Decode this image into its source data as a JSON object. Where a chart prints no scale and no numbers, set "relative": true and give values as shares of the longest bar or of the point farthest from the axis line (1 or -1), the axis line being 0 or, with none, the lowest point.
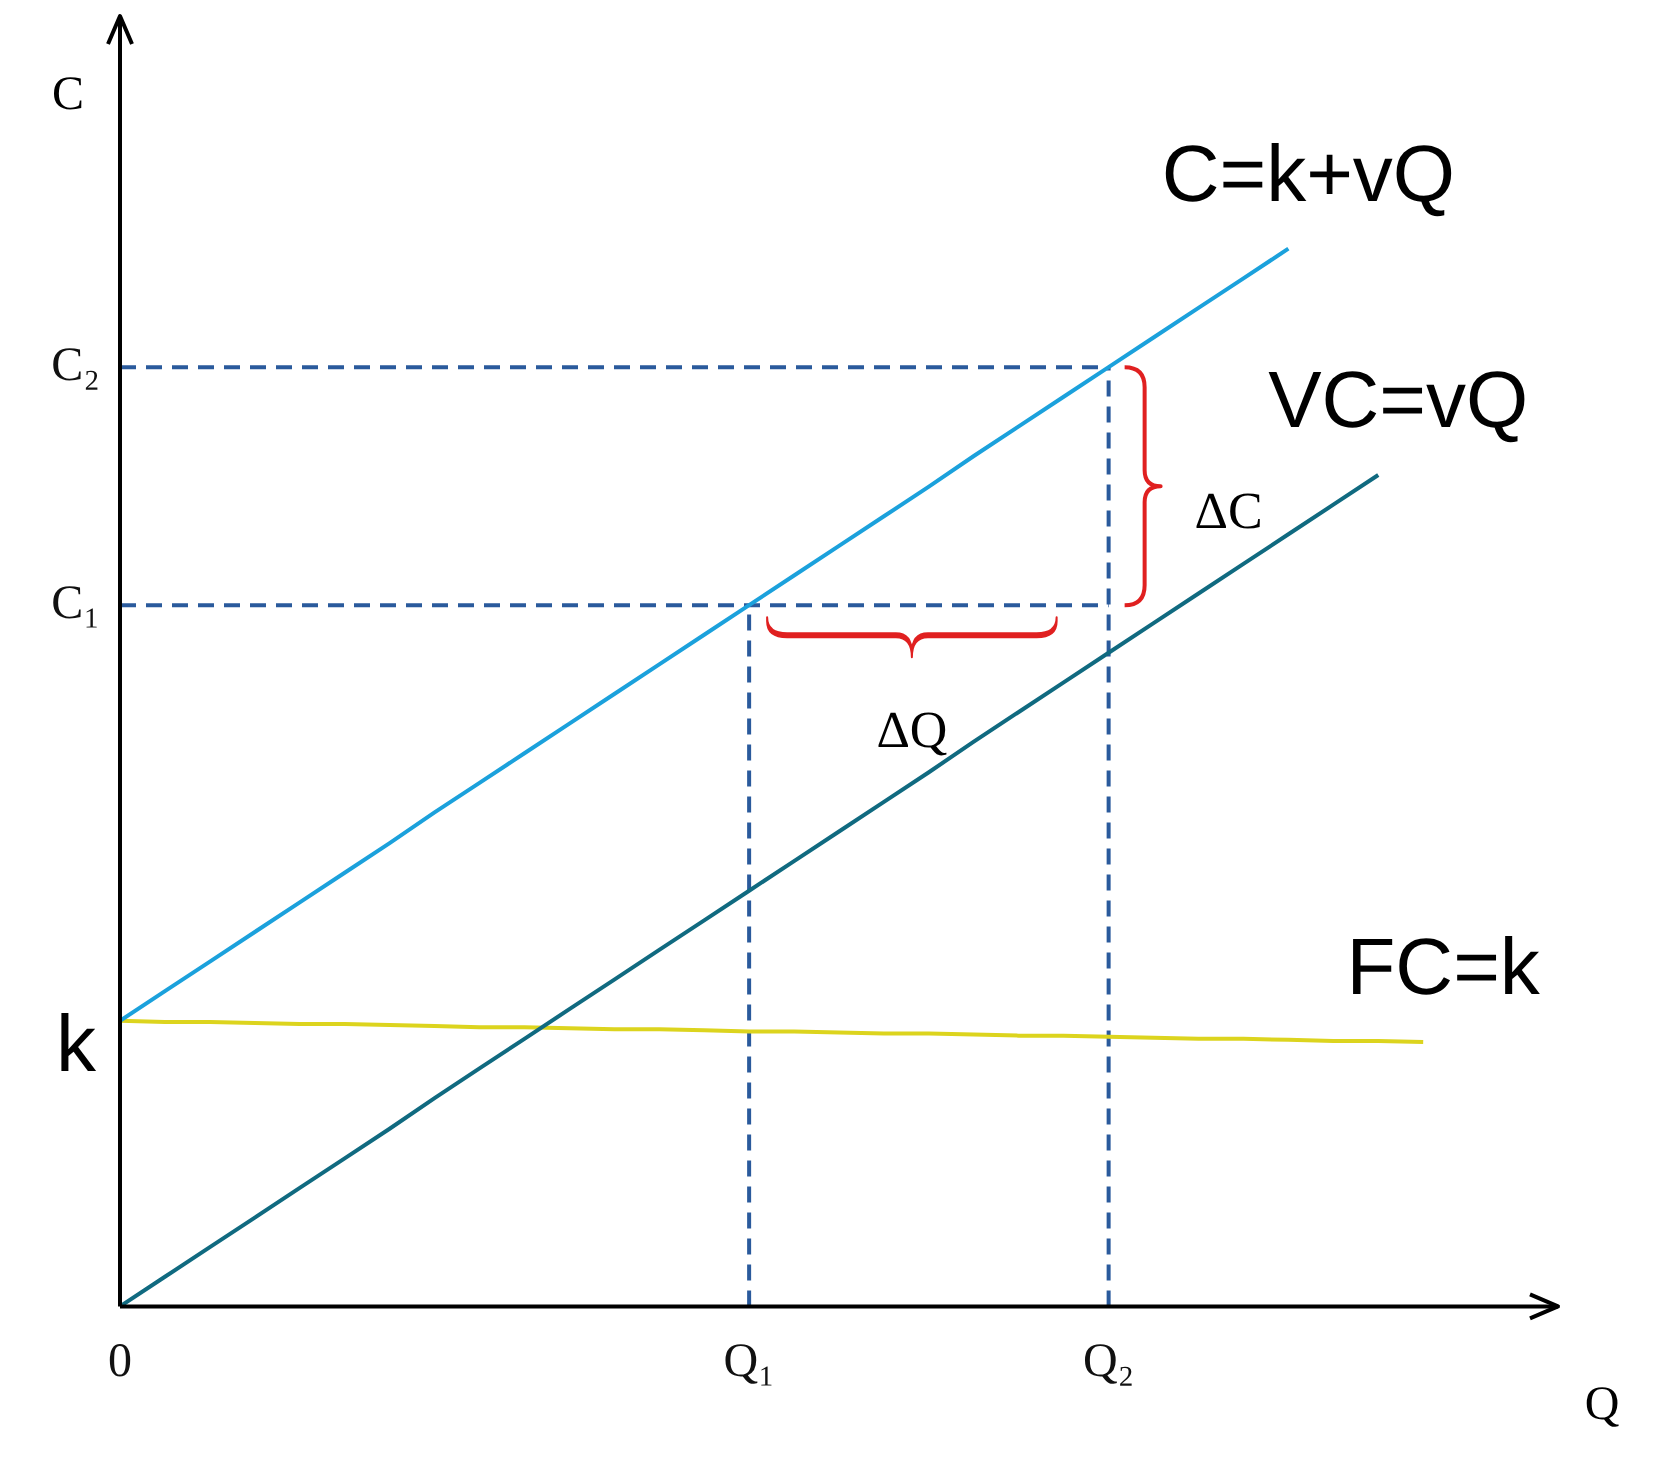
{
  "chart_data": {
    "type": "line",
    "xlabel": "Q",
    "ylabel": "C",
    "relative": true,
    "categories": [
      "0",
      null,
      null,
      null,
      null,
      null,
      null,
      null,
      null,
      null,
      null,
      null,
      null,
      null,
      "Q₁",
      null,
      null,
      null,
      null,
      null,
      null,
      null,
      "Q₂",
      null,
      null,
      null,
      null,
      null,
      null,
      null,
      null,
      null,
      null
    ],
    "grid": false,
    "legend": false,
    "marker": "none",
    "series": [
      {
        "name": "C=k+vQ",
        "color": "#1ba1dc",
        "values": [
          0.27,
          0.298,
          0.326,
          0.354,
          0.382,
          0.41,
          0.438,
          0.467,
          0.495,
          0.523,
          0.551,
          0.579,
          0.607,
          0.635,
          0.663,
          0.691,
          0.719,
          0.747,
          0.775,
          0.804,
          0.832,
          0.86,
          0.888,
          0.916,
          0.944,
          0.972,
          1.0,
          null,
          null,
          null,
          null,
          null,
          null
        ]
      },
      {
        "name": "VC=vQ",
        "color": "#106a80",
        "values": [
          0,
          0.028,
          0.056,
          0.084,
          0.112,
          0.14,
          0.168,
          0.197,
          0.225,
          0.253,
          0.281,
          0.309,
          0.337,
          0.365,
          0.393,
          0.421,
          0.449,
          0.477,
          0.505,
          0.534,
          0.562,
          0.59,
          0.618,
          0.646,
          0.674,
          0.702,
          0.73,
          0.758,
          0.786,
          null,
          null,
          null,
          null
        ]
      },
      {
        "name": "FC=k",
        "color": "#dcd41e",
        "values": [
          0.27,
          0.269,
          0.269,
          0.268,
          0.267,
          0.267,
          0.266,
          0.265,
          0.264,
          0.264,
          0.263,
          0.262,
          0.262,
          0.261,
          0.26,
          0.26,
          0.259,
          0.258,
          0.258,
          0.257,
          0.256,
          0.256,
          0.255,
          0.254,
          0.253,
          0.253,
          0.252,
          0.251,
          0.251,
          0.25,
          null,
          null,
          null
        ]
      }
    ],
    "ref_lines": [
      {
        "axis": "y",
        "value": 0.663,
        "label": "C₁",
        "color": "#2a5a9c",
        "line_style": "dashed"
      },
      {
        "axis": "y",
        "value": 0.888,
        "label": "C₂",
        "color": "#2a5a9c",
        "line_style": "dashed"
      },
      {
        "axis": "x",
        "value": "Q₁",
        "color": "#2a5a9c",
        "line_style": "dashed"
      },
      {
        "axis": "x",
        "value": "Q₂",
        "color": "#2a5a9c",
        "line_style": "dashed"
      }
    ],
    "annotations": [
      "ΔC",
      "ΔQ",
      {
        "text": "k",
        "x": "0",
        "y": 0.27
      }
    ]
  }
}
